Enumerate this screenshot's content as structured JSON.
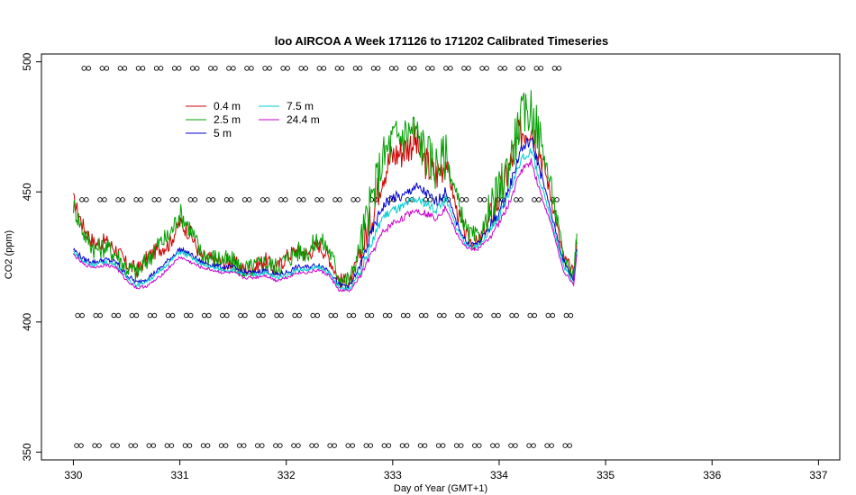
{
  "chart_data": {
    "type": "line",
    "title": "loo AIRCOA A  Week 171126 to 171202  Calibrated Timeseries",
    "xlabel": "Day of Year (GMT+1)",
    "ylabel": "CO2 (ppm)",
    "xlim": [
      329.7,
      337.2
    ],
    "ylim": [
      347,
      503
    ],
    "xticks": [
      330,
      331,
      332,
      333,
      334,
      335,
      336,
      337
    ],
    "yticks": [
      350,
      400,
      450,
      500
    ],
    "grid": false,
    "legend_position": "top-left",
    "series": [
      {
        "name": "0.4 m",
        "color": "#cc0000",
        "x": [
          330.0,
          330.1,
          330.2,
          330.3,
          330.4,
          330.5,
          330.6,
          330.7,
          330.8,
          330.9,
          331.0,
          331.1,
          331.2,
          331.3,
          331.4,
          331.5,
          331.6,
          331.7,
          331.8,
          331.9,
          332.0,
          332.1,
          332.2,
          332.3,
          332.4,
          332.5,
          332.6,
          332.7,
          332.8,
          332.9,
          333.0,
          333.1,
          333.2,
          333.3,
          333.4,
          333.5,
          333.6,
          333.7,
          333.8,
          333.9,
          334.0,
          334.1,
          334.2,
          334.3,
          334.4,
          334.5,
          334.6,
          334.7,
          334.73
        ],
        "y": [
          447,
          436,
          430,
          431,
          428,
          422,
          420,
          425,
          428,
          430,
          438,
          434,
          425,
          424,
          423,
          423,
          420,
          421,
          424,
          420,
          425,
          428,
          426,
          430,
          425,
          416,
          415,
          427,
          440,
          457,
          464,
          466,
          470,
          462,
          456,
          462,
          443,
          432,
          430,
          438,
          448,
          460,
          473,
          476,
          464,
          446,
          425,
          418,
          430
        ]
      },
      {
        "name": "2.5 m",
        "color": "#00a000",
        "x": [
          330.0,
          330.1,
          330.2,
          330.3,
          330.4,
          330.5,
          330.6,
          330.7,
          330.8,
          330.9,
          331.0,
          331.1,
          331.2,
          331.3,
          331.4,
          331.5,
          331.6,
          331.7,
          331.8,
          331.9,
          332.0,
          332.1,
          332.2,
          332.3,
          332.4,
          332.5,
          332.6,
          332.7,
          332.8,
          332.9,
          333.0,
          333.1,
          333.2,
          333.3,
          333.4,
          333.5,
          333.6,
          333.7,
          333.8,
          333.9,
          334.0,
          334.1,
          334.2,
          334.3,
          334.4,
          334.5,
          334.6,
          334.7,
          334.73
        ],
        "y": [
          445,
          434,
          428,
          429,
          426,
          421,
          419,
          424,
          430,
          433,
          442,
          436,
          426,
          425,
          424,
          423,
          420,
          421,
          423,
          421,
          424,
          427,
          427,
          432,
          428,
          417,
          416,
          430,
          446,
          462,
          470,
          472,
          474,
          466,
          460,
          464,
          448,
          434,
          432,
          440,
          450,
          462,
          478,
          482,
          468,
          450,
          425,
          418,
          434
        ]
      },
      {
        "name": "5 m",
        "color": "#0000cc",
        "x": [
          330.0,
          330.1,
          330.2,
          330.3,
          330.4,
          330.5,
          330.6,
          330.7,
          330.8,
          330.9,
          331.0,
          331.1,
          331.2,
          331.3,
          331.4,
          331.5,
          331.6,
          331.7,
          331.8,
          331.9,
          332.0,
          332.1,
          332.2,
          332.3,
          332.4,
          332.5,
          332.6,
          332.7,
          332.8,
          332.9,
          333.0,
          333.1,
          333.2,
          333.3,
          333.4,
          333.5,
          333.6,
          333.7,
          333.8,
          333.9,
          334.0,
          334.1,
          334.2,
          334.3,
          334.4,
          334.5,
          334.6,
          334.7,
          334.73
        ],
        "y": [
          428,
          424,
          423,
          424,
          423,
          418,
          415,
          417,
          420,
          424,
          428,
          426,
          423,
          422,
          421,
          421,
          419,
          419,
          420,
          418,
          419,
          421,
          421,
          422,
          420,
          414,
          414,
          422,
          434,
          444,
          448,
          448,
          452,
          450,
          446,
          450,
          438,
          430,
          430,
          436,
          442,
          452,
          466,
          470,
          456,
          440,
          424,
          416,
          428
        ]
      },
      {
        "name": "7.5 m",
        "color": "#00cccc",
        "x": [
          330.0,
          330.1,
          330.2,
          330.3,
          330.4,
          330.5,
          330.6,
          330.7,
          330.8,
          330.9,
          331.0,
          331.1,
          331.2,
          331.3,
          331.4,
          331.5,
          331.6,
          331.7,
          331.8,
          331.9,
          332.0,
          332.1,
          332.2,
          332.3,
          332.4,
          332.5,
          332.6,
          332.7,
          332.8,
          332.9,
          333.0,
          333.1,
          333.2,
          333.3,
          333.4,
          333.5,
          333.6,
          333.7,
          333.8,
          333.9,
          334.0,
          334.1,
          334.2,
          334.3,
          334.4,
          334.5,
          334.6,
          334.7,
          334.73
        ],
        "y": [
          427,
          423,
          422,
          423,
          422,
          417,
          414,
          416,
          419,
          423,
          427,
          425,
          422,
          421,
          420,
          420,
          418,
          418,
          419,
          417,
          418,
          420,
          420,
          421,
          419,
          413,
          413,
          420,
          430,
          440,
          443,
          444,
          447,
          446,
          443,
          447,
          436,
          429,
          429,
          434,
          440,
          450,
          462,
          466,
          452,
          438,
          422,
          415,
          427
        ]
      },
      {
        "name": "24.4 m",
        "color": "#cc00cc",
        "x": [
          330.0,
          330.1,
          330.2,
          330.3,
          330.4,
          330.5,
          330.6,
          330.7,
          330.8,
          330.9,
          331.0,
          331.1,
          331.2,
          331.3,
          331.4,
          331.5,
          331.6,
          331.7,
          331.8,
          331.9,
          332.0,
          332.1,
          332.2,
          332.3,
          332.4,
          332.5,
          332.6,
          332.7,
          332.8,
          332.9,
          333.0,
          333.1,
          333.2,
          333.3,
          333.4,
          333.5,
          333.6,
          333.7,
          333.8,
          333.9,
          334.0,
          334.1,
          334.2,
          334.3,
          334.4,
          334.5,
          334.6,
          334.7,
          334.73
        ],
        "y": [
          426,
          422,
          421,
          422,
          421,
          416,
          413,
          414,
          417,
          421,
          425,
          423,
          421,
          420,
          419,
          419,
          417,
          417,
          418,
          416,
          417,
          419,
          419,
          420,
          418,
          412,
          412,
          418,
          426,
          434,
          438,
          440,
          443,
          442,
          440,
          444,
          434,
          428,
          428,
          432,
          438,
          446,
          458,
          462,
          448,
          436,
          420,
          414,
          426
        ]
      }
    ],
    "marker_rows": [
      {
        "y": 497.5,
        "x_start": 330.1,
        "x_end": 334.65,
        "step": 0.17
      },
      {
        "y": 447,
        "x_start": 330.08,
        "x_end": 334.65,
        "step": 0.17
      },
      {
        "y": 402.5,
        "x_start": 330.04,
        "x_end": 334.72,
        "step": 0.17
      },
      {
        "y": 352.5,
        "x_start": 330.03,
        "x_end": 334.72,
        "step": 0.17
      }
    ]
  }
}
